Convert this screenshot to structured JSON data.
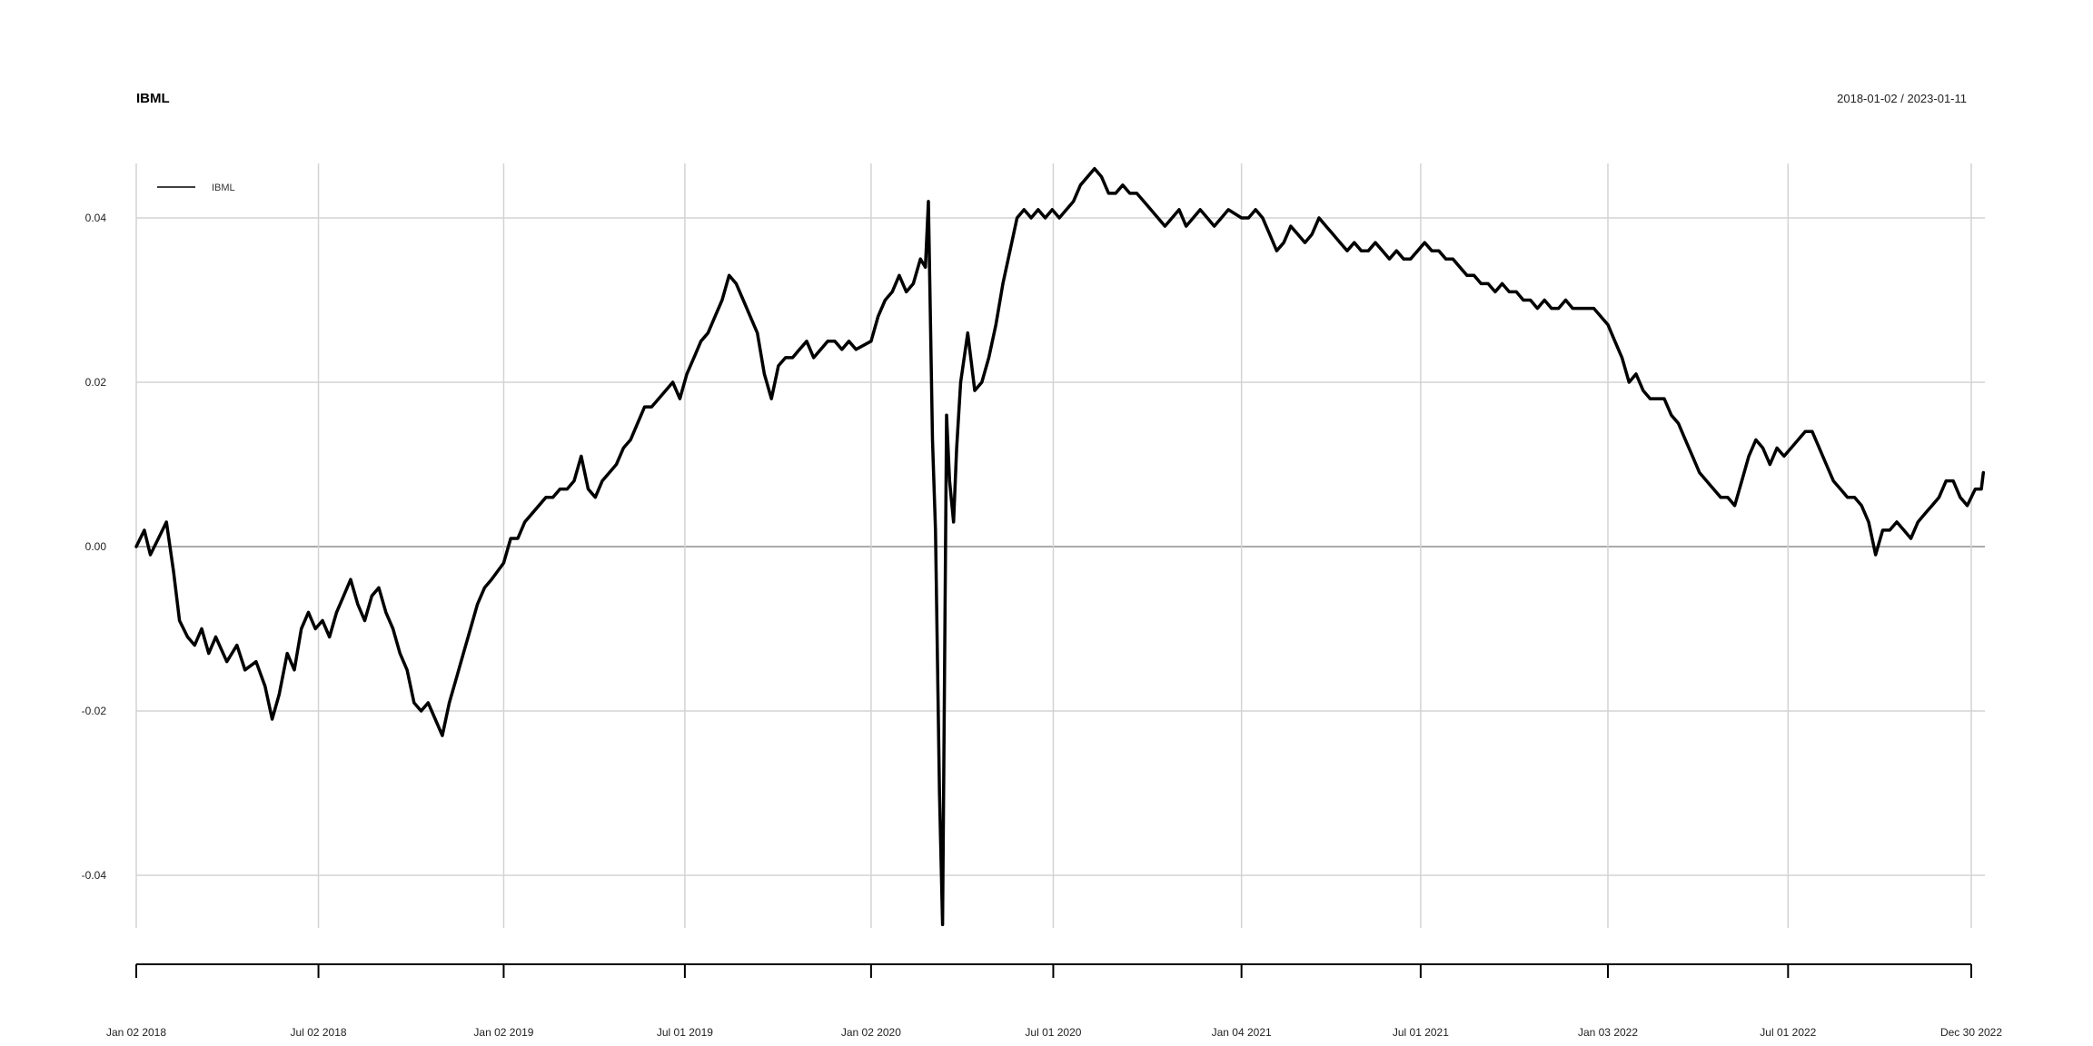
{
  "chart_data": {
    "type": "line",
    "title": "IBML",
    "subtitle": "2018-01-02 / 2023-01-11",
    "xlabel": "",
    "ylabel": "",
    "x_ticks": [
      "Jan 02 2018",
      "Jul 02 2018",
      "Jan 02 2019",
      "Jul 01 2019",
      "Jan 02 2020",
      "Jul 01 2020",
      "Jan 04 2021",
      "Jul 01 2021",
      "Jan 03 2022",
      "Jul 01 2022",
      "Dec 30 2022"
    ],
    "y_ticks": [
      "0.04",
      "0.02",
      "0.00",
      "-0.02",
      "-0.04"
    ],
    "xlim": [
      "2018-01-02",
      "2023-01-11"
    ],
    "ylim": [
      -0.0465,
      0.047
    ],
    "grid": true,
    "legend": {
      "position": "top-left",
      "entries": [
        "IBML"
      ]
    },
    "series": [
      {
        "name": "IBML",
        "color": "#000000",
        "points": [
          [
            "2018-01-02",
            0.0
          ],
          [
            "2018-01-10",
            0.002
          ],
          [
            "2018-01-16",
            -0.001
          ],
          [
            "2018-01-24",
            0.001
          ],
          [
            "2018-02-01",
            0.003
          ],
          [
            "2018-02-08",
            -0.003
          ],
          [
            "2018-02-14",
            -0.009
          ],
          [
            "2018-02-22",
            -0.011
          ],
          [
            "2018-03-01",
            -0.012
          ],
          [
            "2018-03-08",
            -0.01
          ],
          [
            "2018-03-15",
            -0.013
          ],
          [
            "2018-03-22",
            -0.011
          ],
          [
            "2018-04-02",
            -0.014
          ],
          [
            "2018-04-12",
            -0.012
          ],
          [
            "2018-04-20",
            -0.015
          ],
          [
            "2018-05-01",
            -0.014
          ],
          [
            "2018-05-10",
            -0.017
          ],
          [
            "2018-05-17",
            -0.021
          ],
          [
            "2018-05-24",
            -0.018
          ],
          [
            "2018-06-01",
            -0.013
          ],
          [
            "2018-06-08",
            -0.015
          ],
          [
            "2018-06-15",
            -0.01
          ],
          [
            "2018-06-22",
            -0.008
          ],
          [
            "2018-06-29",
            -0.01
          ],
          [
            "2018-07-06",
            -0.009
          ],
          [
            "2018-07-13",
            -0.011
          ],
          [
            "2018-07-20",
            -0.008
          ],
          [
            "2018-07-27",
            -0.006
          ],
          [
            "2018-08-03",
            -0.004
          ],
          [
            "2018-08-10",
            -0.007
          ],
          [
            "2018-08-17",
            -0.009
          ],
          [
            "2018-08-24",
            -0.006
          ],
          [
            "2018-08-31",
            -0.005
          ],
          [
            "2018-09-07",
            -0.008
          ],
          [
            "2018-09-14",
            -0.01
          ],
          [
            "2018-09-21",
            -0.013
          ],
          [
            "2018-09-28",
            -0.015
          ],
          [
            "2018-10-05",
            -0.019
          ],
          [
            "2018-10-12",
            -0.02
          ],
          [
            "2018-10-19",
            -0.019
          ],
          [
            "2018-10-26",
            -0.021
          ],
          [
            "2018-11-02",
            -0.023
          ],
          [
            "2018-11-09",
            -0.019
          ],
          [
            "2018-11-16",
            -0.016
          ],
          [
            "2018-11-23",
            -0.013
          ],
          [
            "2018-11-30",
            -0.01
          ],
          [
            "2018-12-07",
            -0.007
          ],
          [
            "2018-12-14",
            -0.005
          ],
          [
            "2018-12-21",
            -0.004
          ],
          [
            "2019-01-02",
            -0.002
          ],
          [
            "2019-01-09",
            0.001
          ],
          [
            "2019-01-16",
            0.001
          ],
          [
            "2019-01-23",
            0.003
          ],
          [
            "2019-01-30",
            0.004
          ],
          [
            "2019-02-06",
            0.005
          ],
          [
            "2019-02-13",
            0.006
          ],
          [
            "2019-02-20",
            0.006
          ],
          [
            "2019-02-27",
            0.007
          ],
          [
            "2019-03-06",
            0.007
          ],
          [
            "2019-03-13",
            0.008
          ],
          [
            "2019-03-20",
            0.011
          ],
          [
            "2019-03-27",
            0.007
          ],
          [
            "2019-04-03",
            0.006
          ],
          [
            "2019-04-10",
            0.008
          ],
          [
            "2019-04-17",
            0.009
          ],
          [
            "2019-04-24",
            0.01
          ],
          [
            "2019-05-01",
            0.012
          ],
          [
            "2019-05-08",
            0.013
          ],
          [
            "2019-05-15",
            0.015
          ],
          [
            "2019-05-22",
            0.017
          ],
          [
            "2019-05-29",
            0.017
          ],
          [
            "2019-06-05",
            0.018
          ],
          [
            "2019-06-12",
            0.019
          ],
          [
            "2019-06-19",
            0.02
          ],
          [
            "2019-06-26",
            0.018
          ],
          [
            "2019-07-03",
            0.021
          ],
          [
            "2019-07-10",
            0.023
          ],
          [
            "2019-07-17",
            0.025
          ],
          [
            "2019-07-24",
            0.026
          ],
          [
            "2019-07-31",
            0.028
          ],
          [
            "2019-08-07",
            0.03
          ],
          [
            "2019-08-14",
            0.033
          ],
          [
            "2019-08-21",
            0.032
          ],
          [
            "2019-08-28",
            0.03
          ],
          [
            "2019-09-04",
            0.028
          ],
          [
            "2019-09-11",
            0.026
          ],
          [
            "2019-09-18",
            0.021
          ],
          [
            "2019-09-25",
            0.018
          ],
          [
            "2019-10-02",
            0.022
          ],
          [
            "2019-10-09",
            0.023
          ],
          [
            "2019-10-16",
            0.023
          ],
          [
            "2019-10-23",
            0.024
          ],
          [
            "2019-10-30",
            0.025
          ],
          [
            "2019-11-06",
            0.023
          ],
          [
            "2019-11-13",
            0.024
          ],
          [
            "2019-11-20",
            0.025
          ],
          [
            "2019-11-27",
            0.025
          ],
          [
            "2019-12-04",
            0.024
          ],
          [
            "2019-12-11",
            0.025
          ],
          [
            "2019-12-18",
            0.024
          ],
          [
            "2020-01-02",
            0.025
          ],
          [
            "2020-01-09",
            0.028
          ],
          [
            "2020-01-16",
            0.03
          ],
          [
            "2020-01-23",
            0.031
          ],
          [
            "2020-01-30",
            0.033
          ],
          [
            "2020-02-06",
            0.031
          ],
          [
            "2020-02-13",
            0.032
          ],
          [
            "2020-02-20",
            0.035
          ],
          [
            "2020-02-25",
            0.034
          ],
          [
            "2020-02-28",
            0.042
          ],
          [
            "2020-03-03",
            0.013
          ],
          [
            "2020-03-06",
            0.002
          ],
          [
            "2020-03-10",
            -0.03
          ],
          [
            "2020-03-13",
            -0.046
          ],
          [
            "2020-03-17",
            0.016
          ],
          [
            "2020-03-20",
            0.008
          ],
          [
            "2020-03-24",
            0.003
          ],
          [
            "2020-03-27",
            0.012
          ],
          [
            "2020-03-31",
            0.02
          ],
          [
            "2020-04-07",
            0.026
          ],
          [
            "2020-04-14",
            0.019
          ],
          [
            "2020-04-21",
            0.02
          ],
          [
            "2020-04-28",
            0.023
          ],
          [
            "2020-05-05",
            0.027
          ],
          [
            "2020-05-12",
            0.032
          ],
          [
            "2020-05-19",
            0.036
          ],
          [
            "2020-05-26",
            0.04
          ],
          [
            "2020-06-02",
            0.041
          ],
          [
            "2020-06-09",
            0.04
          ],
          [
            "2020-06-16",
            0.041
          ],
          [
            "2020-06-23",
            0.04
          ],
          [
            "2020-06-30",
            0.041
          ],
          [
            "2020-07-07",
            0.04
          ],
          [
            "2020-07-14",
            0.041
          ],
          [
            "2020-07-21",
            0.042
          ],
          [
            "2020-07-28",
            0.044
          ],
          [
            "2020-08-04",
            0.045
          ],
          [
            "2020-08-11",
            0.046
          ],
          [
            "2020-08-18",
            0.045
          ],
          [
            "2020-08-25",
            0.043
          ],
          [
            "2020-09-01",
            0.043
          ],
          [
            "2020-09-08",
            0.044
          ],
          [
            "2020-09-15",
            0.043
          ],
          [
            "2020-09-22",
            0.043
          ],
          [
            "2020-09-29",
            0.042
          ],
          [
            "2020-10-06",
            0.041
          ],
          [
            "2020-10-13",
            0.04
          ],
          [
            "2020-10-20",
            0.039
          ],
          [
            "2020-10-27",
            0.04
          ],
          [
            "2020-11-03",
            0.041
          ],
          [
            "2020-11-10",
            0.039
          ],
          [
            "2020-11-17",
            0.04
          ],
          [
            "2020-11-24",
            0.041
          ],
          [
            "2020-12-01",
            0.04
          ],
          [
            "2020-12-08",
            0.039
          ],
          [
            "2020-12-15",
            0.04
          ],
          [
            "2020-12-22",
            0.041
          ],
          [
            "2021-01-04",
            0.04
          ],
          [
            "2021-01-11",
            0.04
          ],
          [
            "2021-01-18",
            0.041
          ],
          [
            "2021-01-25",
            0.04
          ],
          [
            "2021-02-01",
            0.038
          ],
          [
            "2021-02-08",
            0.036
          ],
          [
            "2021-02-15",
            0.037
          ],
          [
            "2021-02-22",
            0.039
          ],
          [
            "2021-03-01",
            0.038
          ],
          [
            "2021-03-08",
            0.037
          ],
          [
            "2021-03-15",
            0.038
          ],
          [
            "2021-03-22",
            0.04
          ],
          [
            "2021-03-29",
            0.039
          ],
          [
            "2021-04-05",
            0.038
          ],
          [
            "2021-04-12",
            0.037
          ],
          [
            "2021-04-19",
            0.036
          ],
          [
            "2021-04-26",
            0.037
          ],
          [
            "2021-05-03",
            0.036
          ],
          [
            "2021-05-10",
            0.036
          ],
          [
            "2021-05-17",
            0.037
          ],
          [
            "2021-05-24",
            0.036
          ],
          [
            "2021-05-31",
            0.035
          ],
          [
            "2021-06-07",
            0.036
          ],
          [
            "2021-06-14",
            0.035
          ],
          [
            "2021-06-21",
            0.035
          ],
          [
            "2021-06-28",
            0.036
          ],
          [
            "2021-07-05",
            0.037
          ],
          [
            "2021-07-12",
            0.036
          ],
          [
            "2021-07-19",
            0.036
          ],
          [
            "2021-07-26",
            0.035
          ],
          [
            "2021-08-02",
            0.035
          ],
          [
            "2021-08-09",
            0.034
          ],
          [
            "2021-08-16",
            0.033
          ],
          [
            "2021-08-23",
            0.033
          ],
          [
            "2021-08-30",
            0.032
          ],
          [
            "2021-09-06",
            0.032
          ],
          [
            "2021-09-13",
            0.031
          ],
          [
            "2021-09-20",
            0.032
          ],
          [
            "2021-09-27",
            0.031
          ],
          [
            "2021-10-04",
            0.031
          ],
          [
            "2021-10-11",
            0.03
          ],
          [
            "2021-10-18",
            0.03
          ],
          [
            "2021-10-25",
            0.029
          ],
          [
            "2021-11-01",
            0.03
          ],
          [
            "2021-11-08",
            0.029
          ],
          [
            "2021-11-15",
            0.029
          ],
          [
            "2021-11-22",
            0.03
          ],
          [
            "2021-11-29",
            0.029
          ],
          [
            "2021-12-06",
            0.029
          ],
          [
            "2021-12-13",
            0.029
          ],
          [
            "2021-12-20",
            0.029
          ],
          [
            "2022-01-03",
            0.027
          ],
          [
            "2022-01-10",
            0.025
          ],
          [
            "2022-01-17",
            0.023
          ],
          [
            "2022-01-24",
            0.02
          ],
          [
            "2022-01-31",
            0.021
          ],
          [
            "2022-02-07",
            0.019
          ],
          [
            "2022-02-14",
            0.018
          ],
          [
            "2022-02-21",
            0.018
          ],
          [
            "2022-02-28",
            0.018
          ],
          [
            "2022-03-07",
            0.016
          ],
          [
            "2022-03-14",
            0.015
          ],
          [
            "2022-03-21",
            0.013
          ],
          [
            "2022-03-28",
            0.011
          ],
          [
            "2022-04-04",
            0.009
          ],
          [
            "2022-04-11",
            0.008
          ],
          [
            "2022-04-18",
            0.007
          ],
          [
            "2022-04-25",
            0.006
          ],
          [
            "2022-05-02",
            0.006
          ],
          [
            "2022-05-09",
            0.005
          ],
          [
            "2022-05-16",
            0.008
          ],
          [
            "2022-05-23",
            0.011
          ],
          [
            "2022-05-30",
            0.013
          ],
          [
            "2022-06-06",
            0.012
          ],
          [
            "2022-06-13",
            0.01
          ],
          [
            "2022-06-20",
            0.012
          ],
          [
            "2022-06-27",
            0.011
          ],
          [
            "2022-07-04",
            0.012
          ],
          [
            "2022-07-11",
            0.013
          ],
          [
            "2022-07-18",
            0.014
          ],
          [
            "2022-07-25",
            0.014
          ],
          [
            "2022-08-01",
            0.012
          ],
          [
            "2022-08-08",
            0.01
          ],
          [
            "2022-08-15",
            0.008
          ],
          [
            "2022-08-22",
            0.007
          ],
          [
            "2022-08-29",
            0.006
          ],
          [
            "2022-09-05",
            0.006
          ],
          [
            "2022-09-12",
            0.005
          ],
          [
            "2022-09-19",
            0.003
          ],
          [
            "2022-09-26",
            -0.001
          ],
          [
            "2022-10-03",
            0.002
          ],
          [
            "2022-10-10",
            0.002
          ],
          [
            "2022-10-17",
            0.003
          ],
          [
            "2022-10-24",
            0.002
          ],
          [
            "2022-10-31",
            0.001
          ],
          [
            "2022-11-07",
            0.003
          ],
          [
            "2022-11-14",
            0.004
          ],
          [
            "2022-11-21",
            0.005
          ],
          [
            "2022-11-28",
            0.006
          ],
          [
            "2022-12-05",
            0.008
          ],
          [
            "2022-12-12",
            0.008
          ],
          [
            "2022-12-19",
            0.006
          ],
          [
            "2022-12-26",
            0.005
          ],
          [
            "2023-01-03",
            0.007
          ],
          [
            "2023-01-09",
            0.007
          ],
          [
            "2023-01-11",
            0.009
          ]
        ]
      }
    ]
  }
}
